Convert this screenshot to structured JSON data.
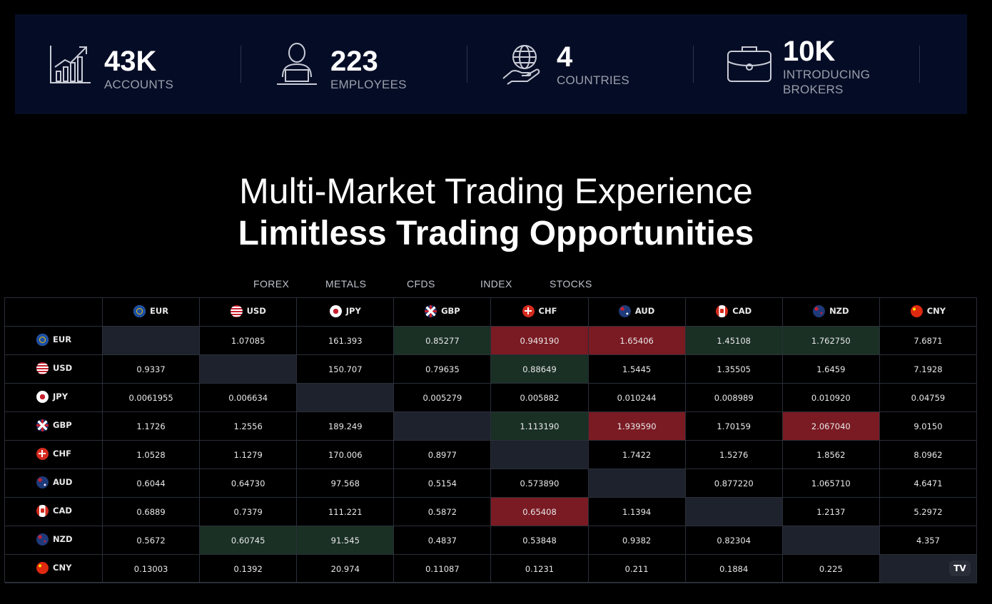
{
  "stats": [
    {
      "value": "43K",
      "label": "ACCOUNTS",
      "icon": "growth-chart-icon"
    },
    {
      "value": "223",
      "label": "EMPLOYEES",
      "icon": "employee-laptop-icon"
    },
    {
      "value": "4",
      "label": "COUNTRIES",
      "icon": "globe-hand-icon"
    },
    {
      "value": "10K",
      "label": "INTRODUCING BROKERS",
      "icon": "briefcase-icon"
    }
  ],
  "headline": {
    "line1": "Multi-Market Trading Experience",
    "line2": "Limitless Trading Opportunities"
  },
  "tabs": [
    "FOREX",
    "METALS",
    "CFDS",
    "INDEX",
    "STOCKS"
  ],
  "currencies": [
    "EUR",
    "USD",
    "JPY",
    "GBP",
    "CHF",
    "AUD",
    "CAD",
    "NZD",
    "CNY"
  ],
  "rows": [
    {
      "ccy": "EUR",
      "cells": [
        "",
        "1.07085",
        "161.393",
        "0.85277",
        "0.949190",
        "1.65406",
        "1.45108",
        "1.762750",
        "7.6871"
      ],
      "states": [
        "self",
        "",
        "",
        "up",
        "down",
        "down",
        "up",
        "up",
        ""
      ]
    },
    {
      "ccy": "USD",
      "cells": [
        "0.9337",
        "",
        "150.707",
        "0.79635",
        "0.88649",
        "1.5445",
        "1.35505",
        "1.6459",
        "7.1928"
      ],
      "states": [
        "",
        "self",
        "",
        "",
        "up",
        "",
        "",
        "",
        ""
      ]
    },
    {
      "ccy": "JPY",
      "cells": [
        "0.0061955",
        "0.006634",
        "",
        "0.005279",
        "0.005882",
        "0.010244",
        "0.008989",
        "0.010920",
        "0.04759"
      ],
      "states": [
        "",
        "",
        "self",
        "",
        "",
        "",
        "",
        "",
        ""
      ]
    },
    {
      "ccy": "GBP",
      "cells": [
        "1.1726",
        "1.2556",
        "189.249",
        "",
        "1.113190",
        "1.939590",
        "1.70159",
        "2.067040",
        "9.0150"
      ],
      "states": [
        "",
        "",
        "",
        "self",
        "up",
        "down",
        "",
        "down",
        ""
      ]
    },
    {
      "ccy": "CHF",
      "cells": [
        "1.0528",
        "1.1279",
        "170.006",
        "0.8977",
        "",
        "1.7422",
        "1.5276",
        "1.8562",
        "8.0962"
      ],
      "states": [
        "",
        "",
        "",
        "",
        "self",
        "",
        "",
        "",
        ""
      ]
    },
    {
      "ccy": "AUD",
      "cells": [
        "0.6044",
        "0.64730",
        "97.568",
        "0.5154",
        "0.573890",
        "",
        "0.877220",
        "1.065710",
        "4.6471"
      ],
      "states": [
        "",
        "",
        "",
        "",
        "",
        "self",
        "",
        "",
        ""
      ]
    },
    {
      "ccy": "CAD",
      "cells": [
        "0.6889",
        "0.7379",
        "111.221",
        "0.5872",
        "0.65408",
        "1.1394",
        "",
        "1.2137",
        "5.2972"
      ],
      "states": [
        "",
        "",
        "",
        "",
        "down",
        "",
        "self",
        "",
        ""
      ]
    },
    {
      "ccy": "NZD",
      "cells": [
        "0.5672",
        "0.60745",
        "91.545",
        "0.4837",
        "0.53848",
        "0.9382",
        "0.82304",
        "",
        "4.357"
      ],
      "states": [
        "",
        "up",
        "up",
        "",
        "",
        "",
        "",
        "self",
        ""
      ]
    },
    {
      "ccy": "CNY",
      "cells": [
        "0.13003",
        "0.1392",
        "20.974",
        "0.11087",
        "0.1231",
        "0.211",
        "0.1884",
        "0.225",
        ""
      ],
      "states": [
        "",
        "",
        "",
        "",
        "",
        "",
        "",
        "",
        "self"
      ]
    }
  ],
  "colors": {
    "banner": "#050d26",
    "up": "#1a3024",
    "down": "#7a1a22",
    "self": "#1e222d"
  },
  "logo_text": "TV"
}
